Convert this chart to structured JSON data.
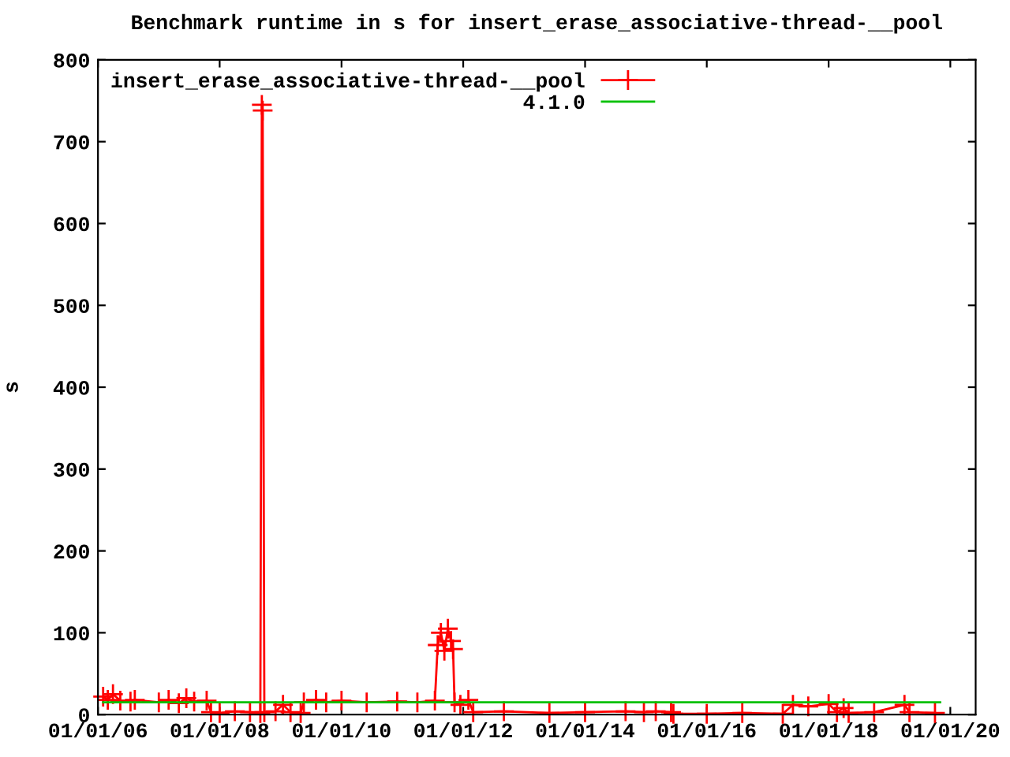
{
  "chart_data": {
    "type": "line",
    "title": "Benchmark runtime in s for insert_erase_associative-thread-__pool",
    "ylabel": "s",
    "xlim": [
      "2006-01-01",
      "2020-06-01"
    ],
    "xticks": [
      {
        "value": "2006-01-01",
        "label": "01/01/06"
      },
      {
        "value": "2008-01-01",
        "label": "01/01/08"
      },
      {
        "value": "2010-01-01",
        "label": "01/01/10"
      },
      {
        "value": "2012-01-01",
        "label": "01/01/12"
      },
      {
        "value": "2014-01-01",
        "label": "01/01/14"
      },
      {
        "value": "2016-01-01",
        "label": "01/01/16"
      },
      {
        "value": "2018-01-01",
        "label": "01/01/18"
      },
      {
        "value": "2020-01-01",
        "label": "01/01/20"
      }
    ],
    "ylim": [
      0,
      800
    ],
    "yticks": [
      0,
      100,
      200,
      300,
      400,
      500,
      600,
      700,
      800
    ],
    "grid": false,
    "legend": "top left",
    "series": [
      {
        "name": "insert_erase_associative-thread-__pool",
        "color": "#ff0000",
        "marker": "cross",
        "line_style": "solid",
        "x": [
          "2006-02-01",
          "2006-03-01",
          "2006-04-01",
          "2006-05-15",
          "2006-07-15",
          "2006-08-10",
          "2007-01-01",
          "2007-03-01",
          "2007-05-01",
          "2007-06-15",
          "2007-08-01",
          "2007-10-15",
          "2007-11-10",
          "2008-01-01",
          "2008-04-01",
          "2008-07-01",
          "2008-09-01",
          "2008-09-10",
          "2008-09-15",
          "2008-09-25",
          "2008-12-01",
          "2009-01-15",
          "2009-03-01",
          "2009-05-01",
          "2009-05-20",
          "2009-08-01",
          "2009-10-01",
          "2010-01-01",
          "2010-06-01",
          "2010-12-01",
          "2011-04-01",
          "2011-07-15",
          "2011-08-01",
          "2011-08-20",
          "2011-09-10",
          "2011-10-01",
          "2011-10-20",
          "2011-11-01",
          "2011-11-10",
          "2011-12-15",
          "2012-02-01",
          "2012-03-01",
          "2012-09-01",
          "2013-06-01",
          "2014-01-01",
          "2014-09-01",
          "2014-12-20",
          "2015-03-01",
          "2015-06-01",
          "2015-06-15",
          "2016-01-01",
          "2016-08-01",
          "2017-04-01",
          "2017-06-01",
          "2017-09-01",
          "2018-01-01",
          "2018-02-20",
          "2018-04-01",
          "2018-05-01",
          "2018-10-01",
          "2019-04-01",
          "2019-05-01",
          "2019-10-01"
        ],
        "values": [
          22,
          18,
          25,
          17,
          16,
          18,
          15,
          18,
          14,
          20,
          16,
          17,
          3,
          2,
          4,
          3,
          2,
          745,
          738,
          3,
          4,
          12,
          3,
          2,
          15,
          18,
          15,
          17,
          15,
          16,
          15,
          17,
          85,
          100,
          78,
          105,
          90,
          80,
          15,
          12,
          18,
          3,
          4,
          2,
          3,
          4,
          3,
          4,
          3,
          1,
          1,
          2,
          1,
          12,
          10,
          13,
          3,
          8,
          2,
          3,
          12,
          3,
          2
        ]
      },
      {
        "name": "4.1.0",
        "color": "#00c000",
        "marker": "none",
        "line_style": "solid",
        "x": [
          "2006-02-01",
          "2019-11-01"
        ],
        "values": [
          15,
          15
        ]
      }
    ]
  }
}
